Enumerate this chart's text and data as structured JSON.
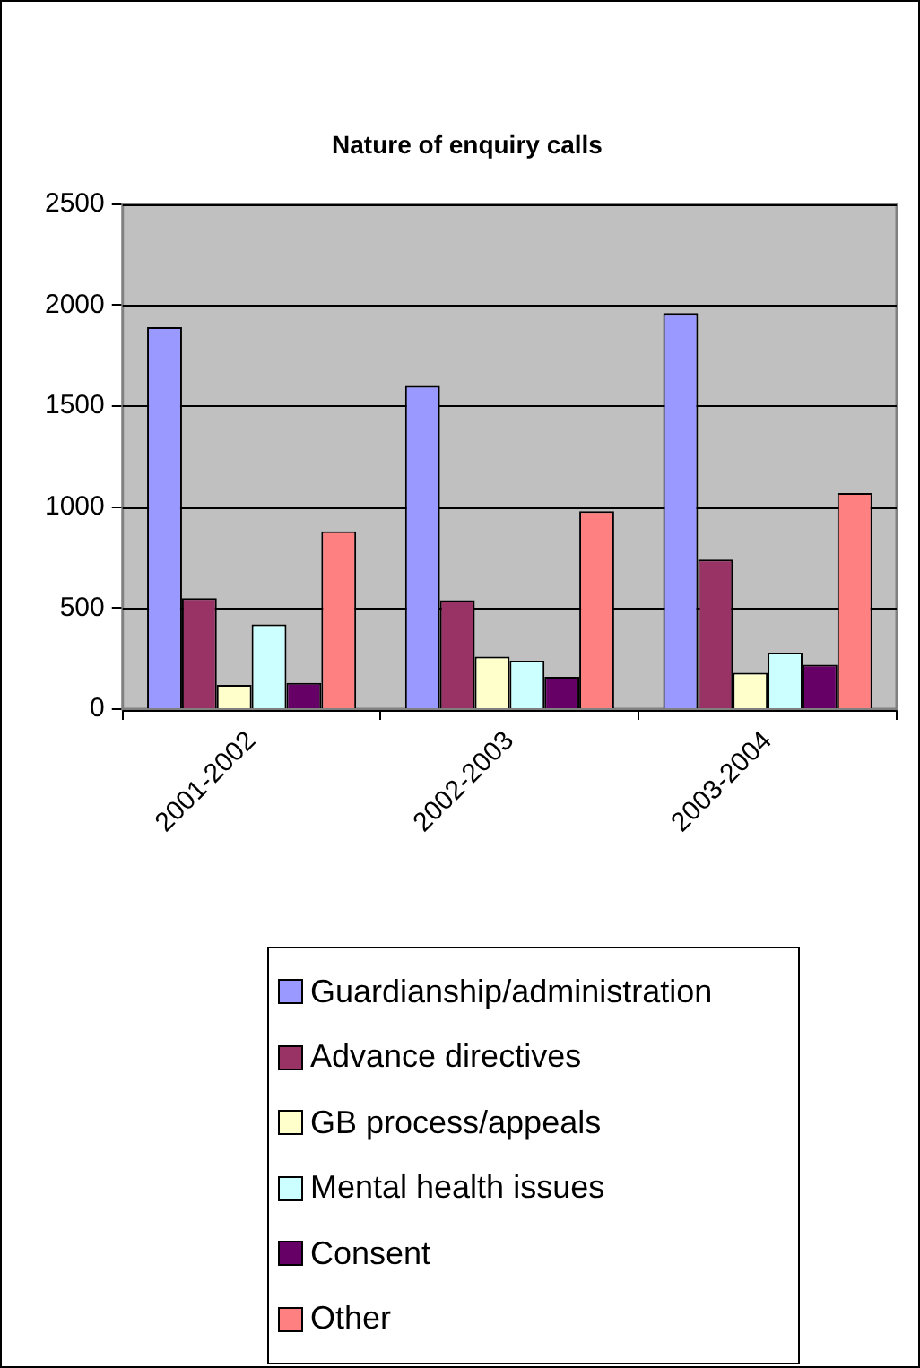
{
  "chart_data": {
    "type": "bar",
    "title": "Nature of enquiry calls",
    "categories": [
      "2001-2002",
      "2002-2003",
      "2003-2004"
    ],
    "series": [
      {
        "name": "Guardianship/administration",
        "color": "#9999ff",
        "values": [
          1890,
          1600,
          1960
        ]
      },
      {
        "name": "Advance directives",
        "color": "#993366",
        "values": [
          550,
          540,
          740
        ]
      },
      {
        "name": "GB process/appeals",
        "color": "#ffffcc",
        "values": [
          120,
          260,
          180
        ]
      },
      {
        "name": "Mental health issues",
        "color": "#ccffff",
        "values": [
          420,
          240,
          280
        ]
      },
      {
        "name": "Consent",
        "color": "#660066",
        "values": [
          130,
          160,
          220
        ]
      },
      {
        "name": "Other",
        "color": "#ff8080",
        "values": [
          880,
          980,
          1070
        ]
      }
    ],
    "ylim": [
      0,
      2500
    ],
    "yticks": [
      0,
      500,
      1000,
      1500,
      2000,
      2500
    ],
    "grid": "y",
    "legend": "bottom"
  }
}
